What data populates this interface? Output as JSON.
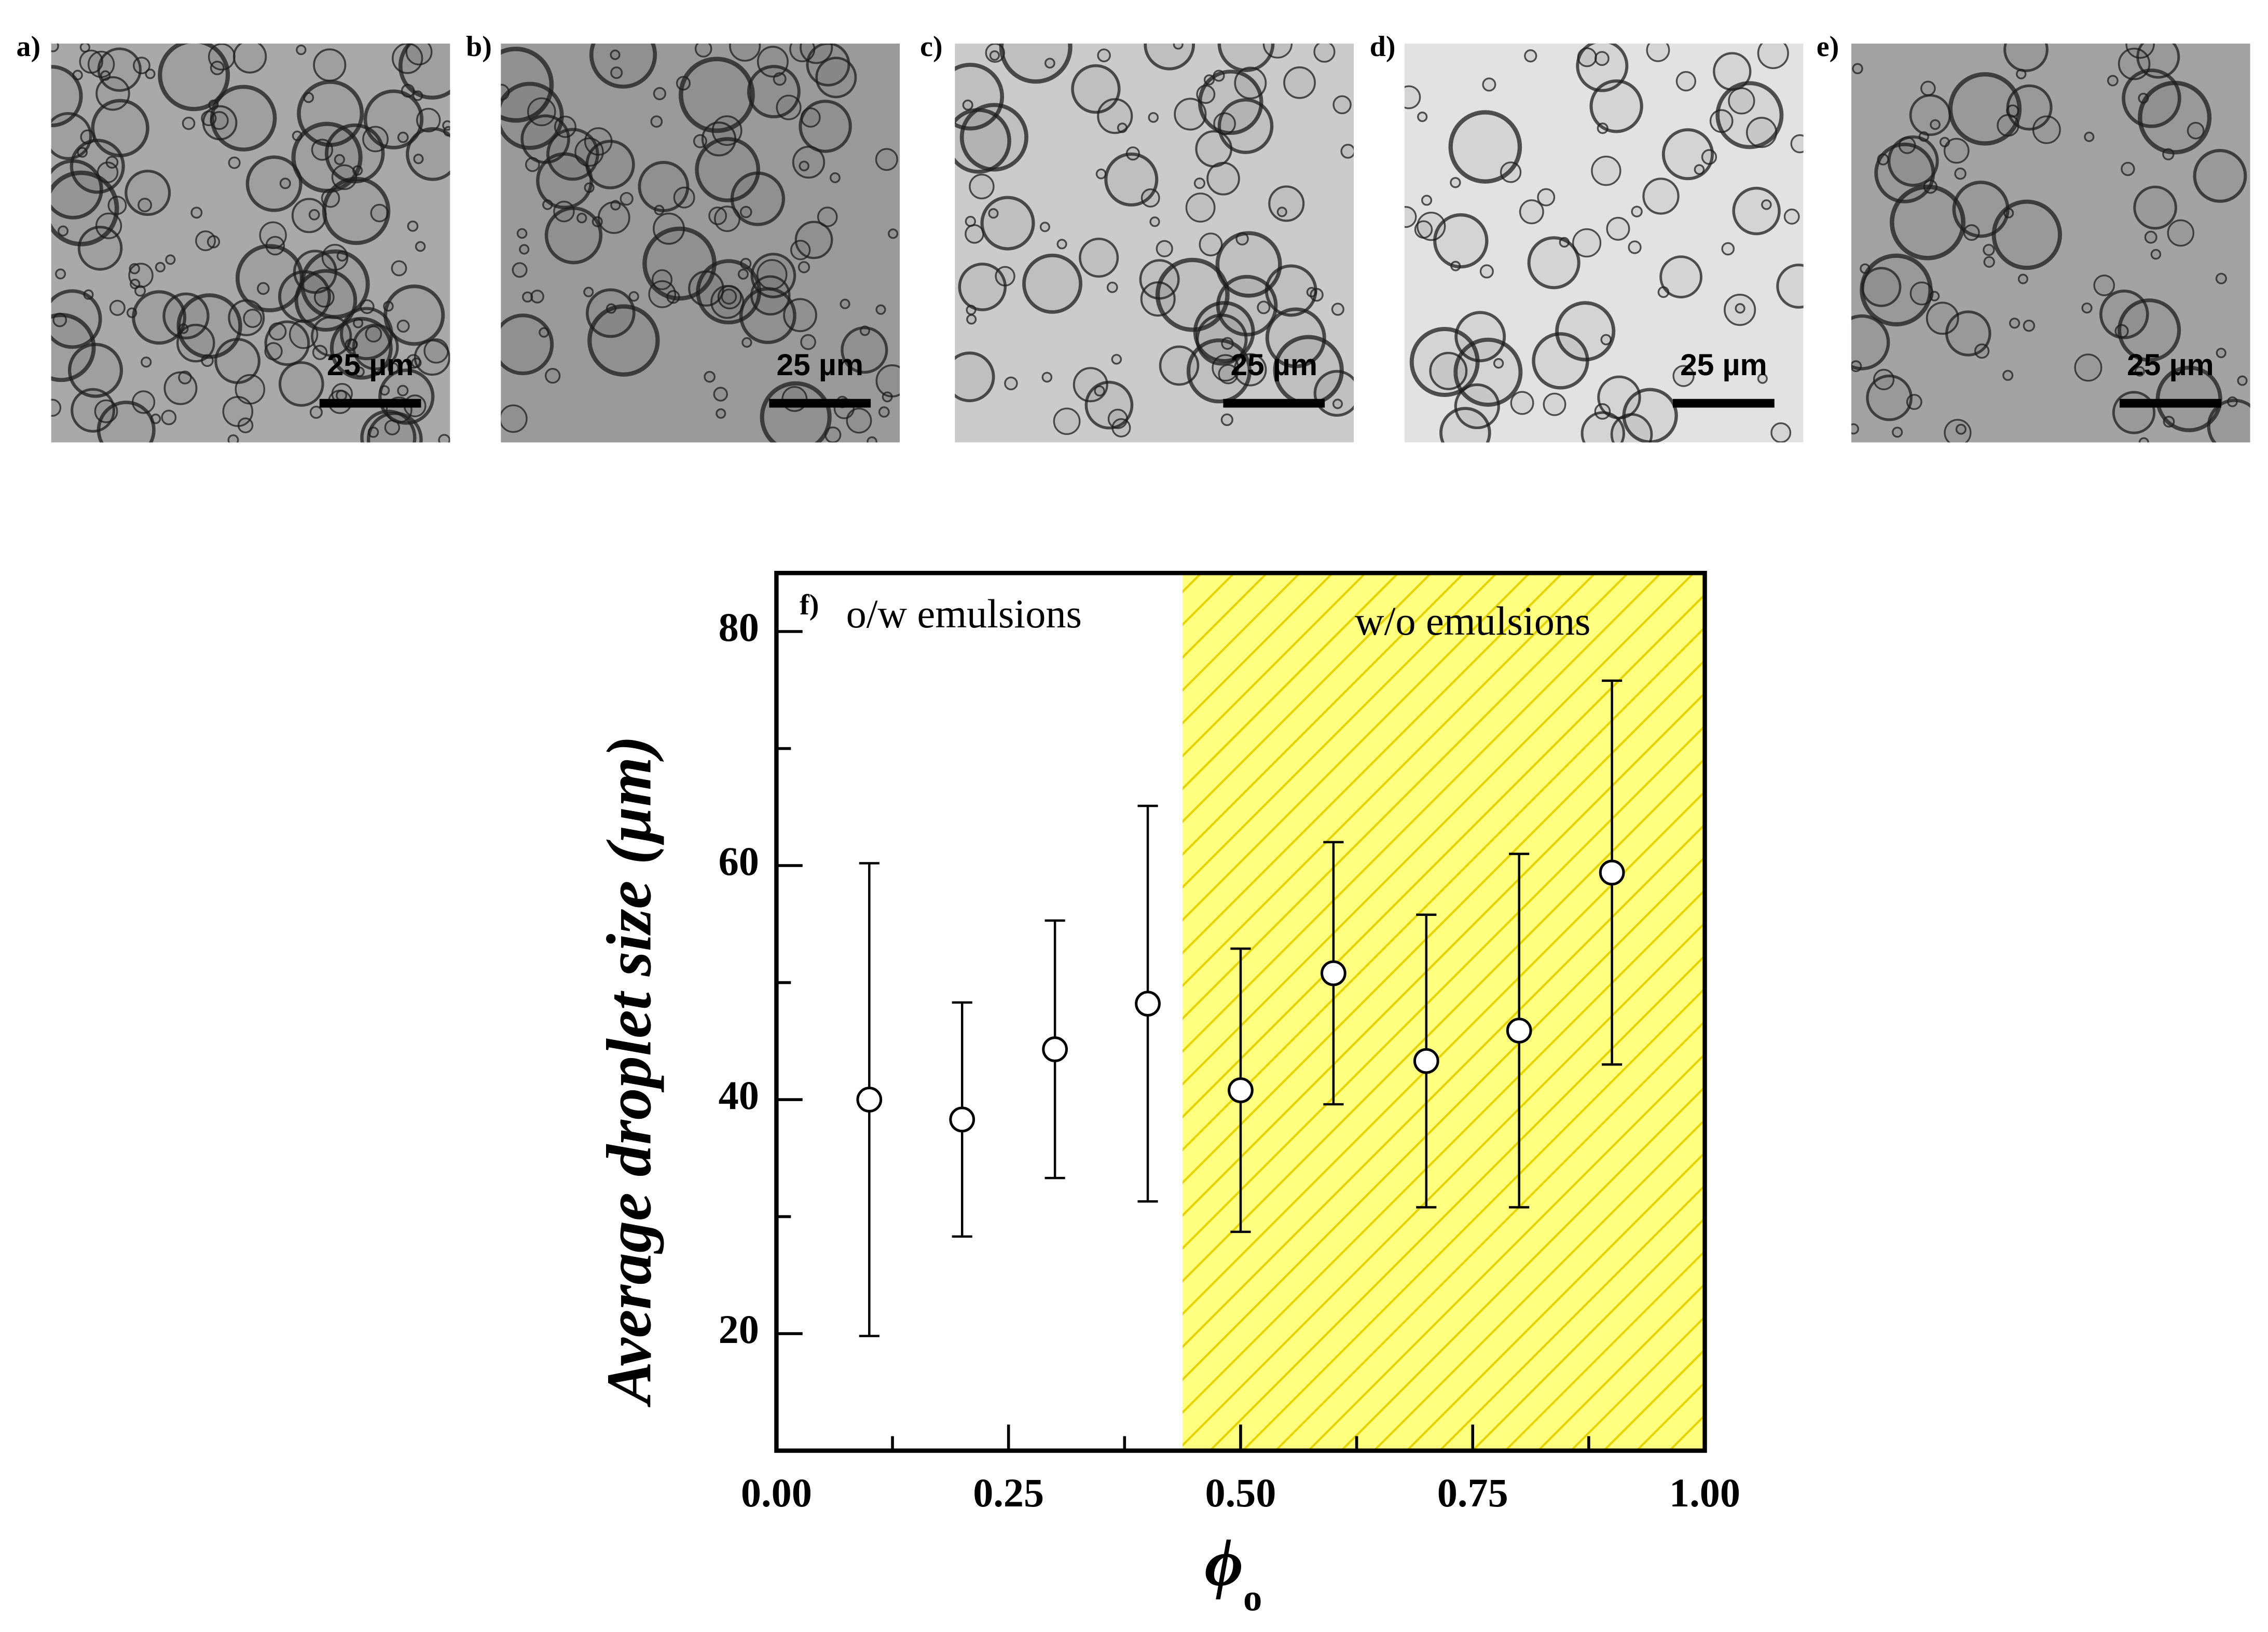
{
  "chart_data": {
    "type": "scatter",
    "panels": [
      {
        "label": "a)",
        "scale_bar": "25 µm"
      },
      {
        "label": "b)",
        "scale_bar": "25 µm"
      },
      {
        "label": "c)",
        "scale_bar": "25 µm"
      },
      {
        "label": "d)",
        "scale_bar": "25 µm"
      },
      {
        "label": "e)",
        "scale_bar": "25 µm"
      }
    ],
    "panel_label": "f)",
    "annotations": [
      "o/w emulsions",
      "w/o emulsions"
    ],
    "x_label": "ϕ",
    "x_label_subscript": "o",
    "y_label": "Average droplet size (µm)",
    "x": [
      0.1,
      0.2,
      0.3,
      0.4,
      0.5,
      0.6,
      0.7,
      0.8,
      0.9
    ],
    "values": [
      40,
      38.3,
      44.3,
      48.2,
      40.8,
      50.8,
      43.3,
      45.9,
      59.4
    ],
    "errors": [
      20.2,
      10,
      11,
      16.9,
      12.1,
      11.2,
      12.5,
      15.1,
      16.4
    ],
    "shaded_region": [
      0.4375,
      1
    ],
    "shade_color": "#ffff80",
    "hatch_color": "#e6d400",
    "xlim": [
      0,
      1
    ],
    "ylim": [
      10,
      85
    ],
    "xticks": [
      {
        "value": 0,
        "label": "0.00"
      },
      {
        "value": 0.25,
        "label": "0.25"
      },
      {
        "value": 0.5,
        "label": "0.50"
      },
      {
        "value": 0.75,
        "label": "0.75"
      },
      {
        "value": 1,
        "label": "1.00"
      }
    ],
    "yticks": [
      20,
      40,
      60,
      80
    ]
  }
}
